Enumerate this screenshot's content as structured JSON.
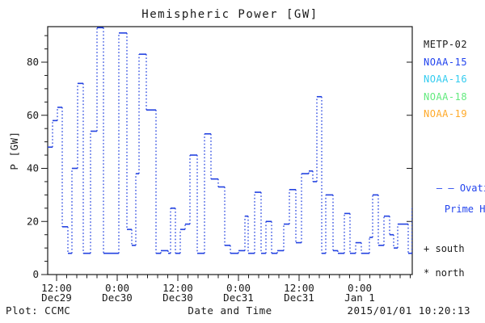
{
  "title": "Hemispheric Power [GW]",
  "footer": {
    "left": "Plot: CCMC",
    "center": "Date and Time",
    "right": "2015/01/01 10:20:13"
  },
  "legend_satellites": [
    {
      "label": "METP-02",
      "color": "#1a1a1a"
    },
    {
      "label": "NOAA-15",
      "color": "#2244ee"
    },
    {
      "label": "NOAA-16",
      "color": "#33ccf0"
    },
    {
      "label": "NOAA-18",
      "color": "#63ea7e"
    },
    {
      "label": "NOAA-19",
      "color": "#ffaa2a"
    }
  ],
  "legend_line": {
    "symbol": "– –",
    "label_line1": "Ovation",
    "label_line2": "Prime HPI",
    "color": "#2244ee"
  },
  "legend_markers": [
    {
      "symbol": "+",
      "label": "south"
    },
    {
      "symbol": "*",
      "label": "north"
    }
  ],
  "colors": {
    "axis": "#1a1a1a",
    "background": "#ffffff",
    "series_line": "#2342e0"
  },
  "chart_data": {
    "type": "line",
    "subtype": "step",
    "title": "Hemispheric Power [GW]",
    "xlabel": "Date and Time",
    "ylabel": "P [GW]",
    "legend_position": "right",
    "grid": false,
    "ylim": [
      0,
      93.4
    ],
    "y_major_ticks": [
      0,
      20,
      40,
      60,
      80
    ],
    "y_minor_step": 5,
    "x_hours_range": [
      -1.76,
      70.4
    ],
    "x_major_ticks": [
      {
        "h": 0,
        "time": "12:00",
        "date": "Dec29"
      },
      {
        "h": 12,
        "time": "0:00",
        "date": "Dec30"
      },
      {
        "h": 24,
        "time": "12:00",
        "date": "Dec30"
      },
      {
        "h": 36,
        "time": "0:00",
        "date": "Dec31"
      },
      {
        "h": 48,
        "time": "12:00",
        "date": "Dec31"
      },
      {
        "h": 60,
        "time": "0:00",
        "date": "Jan 1"
      }
    ],
    "x_minor_step_hours": 2,
    "series": [
      {
        "name": "Ovation Prime HPI",
        "color": "#2342e0",
        "style": "solid horizontal steps joined by dotted verticals",
        "steps_h_start_h_end_value_gw": [
          [
            -1.76,
            -0.8,
            48
          ],
          [
            -0.8,
            0.16,
            58
          ],
          [
            0.16,
            1.12,
            63
          ],
          [
            1.12,
            2.24,
            18
          ],
          [
            2.24,
            3.04,
            8
          ],
          [
            3.04,
            4.16,
            40
          ],
          [
            4.16,
            5.28,
            72
          ],
          [
            5.28,
            6.72,
            8
          ],
          [
            6.72,
            8.0,
            54
          ],
          [
            8.0,
            9.28,
            93
          ],
          [
            9.28,
            12.32,
            8
          ],
          [
            12.32,
            13.92,
            91
          ],
          [
            13.92,
            14.88,
            17
          ],
          [
            14.88,
            15.68,
            11
          ],
          [
            15.68,
            16.32,
            38
          ],
          [
            16.32,
            17.76,
            83
          ],
          [
            17.76,
            19.68,
            62
          ],
          [
            19.68,
            20.64,
            8
          ],
          [
            20.64,
            22.08,
            9
          ],
          [
            22.08,
            22.56,
            8
          ],
          [
            22.56,
            23.52,
            25
          ],
          [
            23.52,
            24.48,
            8
          ],
          [
            24.48,
            25.44,
            17
          ],
          [
            25.44,
            26.4,
            19
          ],
          [
            26.4,
            27.84,
            45
          ],
          [
            27.84,
            29.28,
            8
          ],
          [
            29.28,
            30.56,
            53
          ],
          [
            30.56,
            32.0,
            36
          ],
          [
            32.0,
            33.28,
            33
          ],
          [
            33.28,
            34.4,
            11
          ],
          [
            34.4,
            36.0,
            8
          ],
          [
            36.0,
            37.28,
            9
          ],
          [
            37.28,
            37.92,
            22
          ],
          [
            37.92,
            39.2,
            8
          ],
          [
            39.2,
            40.48,
            31
          ],
          [
            40.48,
            41.44,
            8
          ],
          [
            41.44,
            42.56,
            20
          ],
          [
            42.56,
            43.68,
            8
          ],
          [
            43.68,
            44.96,
            9
          ],
          [
            44.96,
            46.08,
            19
          ],
          [
            46.08,
            47.36,
            32
          ],
          [
            47.36,
            48.48,
            12
          ],
          [
            48.48,
            49.92,
            38
          ],
          [
            49.92,
            50.72,
            39
          ],
          [
            50.72,
            51.52,
            35
          ],
          [
            51.52,
            52.48,
            67
          ],
          [
            52.48,
            53.28,
            8
          ],
          [
            53.28,
            54.72,
            30
          ],
          [
            54.72,
            55.68,
            9
          ],
          [
            55.68,
            56.96,
            8
          ],
          [
            56.96,
            58.08,
            23
          ],
          [
            58.08,
            59.2,
            8
          ],
          [
            59.2,
            60.32,
            12
          ],
          [
            60.32,
            61.92,
            8
          ],
          [
            61.92,
            62.56,
            14
          ],
          [
            62.56,
            63.68,
            30
          ],
          [
            63.68,
            64.8,
            11
          ],
          [
            64.8,
            65.92,
            22
          ],
          [
            65.92,
            66.72,
            15
          ],
          [
            66.72,
            67.52,
            10
          ],
          [
            67.52,
            69.6,
            19
          ],
          [
            69.6,
            70.35,
            8
          ],
          [
            70.35,
            70.72,
            25
          ]
        ]
      }
    ]
  }
}
